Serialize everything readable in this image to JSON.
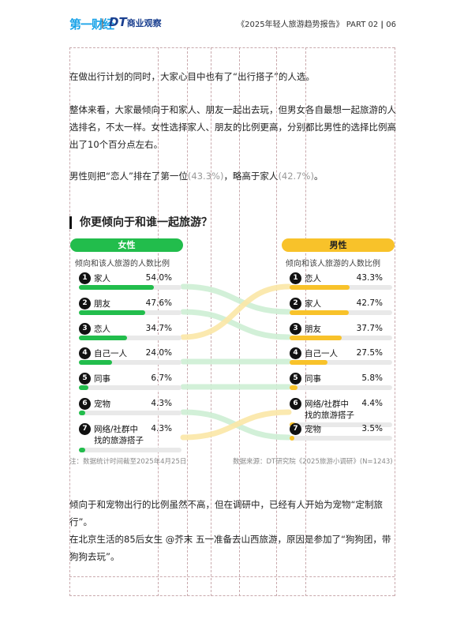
{
  "header": {
    "logo_main": "第一财经",
    "logo_sep": "|",
    "logo_dt": "DT",
    "logo_dt_sub": "商业观察",
    "report": "《2025年轻人旅游趋势报告》",
    "part": "PART 02",
    "sep": "|",
    "page": "06"
  },
  "paragraphs": {
    "p1": "在做出行计划的同时，大家心目中也有了“出行搭子”的人选。",
    "p2": "整体来看，大家最倾向于和家人、朋友一起出去玩，但男女各自最想一起旅游的人选排名，不太一样。女性选择家人、朋友的比例更高，分别都比男性的选择比例高出了10个百分点左右。",
    "p3_a": "男性则把“恋人”排在了第一位",
    "p3_b": "(43.3%)",
    "p3_c": "，略高于家人",
    "p3_d": "(42.7%)",
    "p3_e": "。",
    "p4": "倾向于和宠物出行的比例虽然不高，但在调研中，已经有人开始为宠物“定制旅行”。",
    "p5": "在北京生活的85后女生 @芥末 五一准备去山西旅游，原因是参加了“狗狗团，带狗狗去玩”。"
  },
  "colors": {
    "female": "#22bd4c",
    "male": "#f8c22a",
    "track": "#e9e9e9"
  },
  "chart_data": {
    "type": "bar",
    "title": "你更倾向于和谁一起旅游？",
    "subtitle": "倾向和该人旅游的人数比例",
    "female_label": "女性",
    "male_label": "男性",
    "female": [
      {
        "rank": "1",
        "name": "家人",
        "value": 54.0,
        "label": "54.0%"
      },
      {
        "rank": "2",
        "name": "朋友",
        "value": 47.6,
        "label": "47.6%"
      },
      {
        "rank": "3",
        "name": "恋人",
        "value": 34.7,
        "label": "34.7%"
      },
      {
        "rank": "4",
        "name": "自己一人",
        "value": 24.0,
        "label": "24.0%"
      },
      {
        "rank": "5",
        "name": "同事",
        "value": 6.7,
        "label": "6.7%"
      },
      {
        "rank": "6",
        "name": "宠物",
        "value": 4.3,
        "label": "4.3%"
      },
      {
        "rank": "7",
        "name": "网络/社群中\n找的旅游搭子",
        "value": 4.3,
        "label": "4.3%"
      }
    ],
    "male": [
      {
        "rank": "1",
        "name": "恋人",
        "value": 43.3,
        "label": "43.3%"
      },
      {
        "rank": "2",
        "name": "家人",
        "value": 42.7,
        "label": "42.7%"
      },
      {
        "rank": "3",
        "name": "朋友",
        "value": 37.7,
        "label": "37.7%"
      },
      {
        "rank": "4",
        "name": "自己一人",
        "value": 27.5,
        "label": "27.5%"
      },
      {
        "rank": "5",
        "name": "同事",
        "value": 5.8,
        "label": "5.8%"
      },
      {
        "rank": "6",
        "name": "网络/社群中\n找的旅游搭子",
        "value": 4.4,
        "label": "4.4%"
      },
      {
        "rank": "7",
        "name": "宠物",
        "value": 3.5,
        "label": "3.5%"
      }
    ],
    "xlim": [
      0,
      100
    ],
    "note": "注：数据统计时间截至2025年4月25日",
    "source": "数据来源：DT研究院《2025旅游小调研》(N=1243)"
  }
}
